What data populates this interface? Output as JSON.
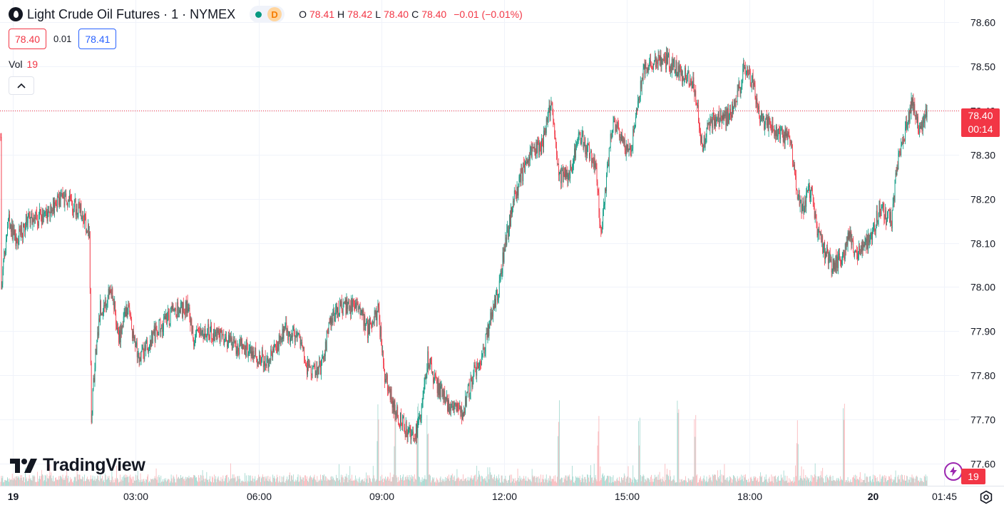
{
  "legend": {
    "symbol_icon": "oil-drop-icon",
    "title": "Light Crude Oil Futures · 1 · NYMEX",
    "status_icon": "market-open-dot-icon",
    "delay_badge": "D",
    "ohlc": {
      "o_label": "O",
      "o_value": "78.41",
      "h_label": "H",
      "h_value": "78.42",
      "l_label": "L",
      "l_value": "78.40",
      "c_label": "C",
      "c_value": "78.40",
      "change": "−0.01 (−0.01%)"
    }
  },
  "trade": {
    "bid": "78.40",
    "spread": "0.01",
    "ask": "78.41"
  },
  "volume_legend": {
    "label": "Vol",
    "value": "19"
  },
  "collapse_icon": "chevron-up-icon",
  "brand": {
    "logo_icon": "tradingview-logo-icon",
    "name": "TradingView"
  },
  "price_label": {
    "price": "78.40",
    "countdown": "00:14"
  },
  "volume_label": "19",
  "colors": {
    "up": "#089981",
    "down": "#f23645",
    "up_volume": "#9ed6cd",
    "down_volume": "#f9b2b6",
    "grid": "#f0f3fa",
    "text": "#131722",
    "accent": "#2962ff"
  },
  "chart_data": {
    "type": "candlestick",
    "interval": "1 minute",
    "y_ticks": [
      "78.60",
      "78.50",
      "78.40",
      "78.30",
      "78.20",
      "78.10",
      "78.00",
      "77.90",
      "77.80",
      "77.70",
      "77.60"
    ],
    "x_ticks": [
      {
        "label": "19",
        "bold": true,
        "minute": 0
      },
      {
        "label": "03:00",
        "bold": false,
        "minute": 180
      },
      {
        "label": "06:00",
        "bold": false,
        "minute": 360
      },
      {
        "label": "09:00",
        "bold": false,
        "minute": 540
      },
      {
        "label": "12:00",
        "bold": false,
        "minute": 720
      },
      {
        "label": "15:00",
        "bold": false,
        "minute": 900
      },
      {
        "label": "18:00",
        "bold": false,
        "minute": 1080
      },
      {
        "label": "20",
        "bold": true,
        "minute": 1260
      },
      {
        "label": "01:45",
        "bold": false,
        "minute": 1365
      }
    ],
    "ylim": [
      77.55,
      78.65
    ],
    "x_range_minutes": [
      -19,
      1387
    ],
    "last_price": 78.4,
    "price_path": [
      [
        -18,
        78.34
      ],
      [
        -17,
        77.99
      ],
      [
        -14,
        78.05
      ],
      [
        -6,
        78.15
      ],
      [
        5,
        78.1
      ],
      [
        20,
        78.15
      ],
      [
        50,
        78.16
      ],
      [
        65,
        78.2
      ],
      [
        85,
        78.19
      ],
      [
        100,
        78.17
      ],
      [
        112,
        78.12
      ],
      [
        115,
        77.7
      ],
      [
        121,
        77.85
      ],
      [
        128,
        77.95
      ],
      [
        135,
        77.96
      ],
      [
        145,
        78.0
      ],
      [
        155,
        77.88
      ],
      [
        168,
        77.95
      ],
      [
        185,
        77.83
      ],
      [
        200,
        77.88
      ],
      [
        220,
        77.92
      ],
      [
        240,
        77.95
      ],
      [
        258,
        77.95
      ],
      [
        265,
        77.88
      ],
      [
        290,
        77.9
      ],
      [
        320,
        77.87
      ],
      [
        345,
        77.86
      ],
      [
        372,
        77.83
      ],
      [
        400,
        77.9
      ],
      [
        420,
        77.88
      ],
      [
        435,
        77.8
      ],
      [
        452,
        77.82
      ],
      [
        465,
        77.92
      ],
      [
        478,
        77.95
      ],
      [
        492,
        77.96
      ],
      [
        508,
        77.95
      ],
      [
        520,
        77.9
      ],
      [
        535,
        77.95
      ],
      [
        545,
        77.8
      ],
      [
        560,
        77.72
      ],
      [
        575,
        77.68
      ],
      [
        590,
        77.67
      ],
      [
        598,
        77.7
      ],
      [
        608,
        77.84
      ],
      [
        620,
        77.78
      ],
      [
        632,
        77.75
      ],
      [
        645,
        77.72
      ],
      [
        660,
        77.72
      ],
      [
        675,
        77.8
      ],
      [
        690,
        77.85
      ],
      [
        700,
        77.93
      ],
      [
        710,
        77.98
      ],
      [
        722,
        78.1
      ],
      [
        735,
        78.2
      ],
      [
        745,
        78.25
      ],
      [
        758,
        78.3
      ],
      [
        775,
        78.32
      ],
      [
        790,
        78.42
      ],
      [
        800,
        78.25
      ],
      [
        815,
        78.25
      ],
      [
        830,
        78.35
      ],
      [
        845,
        78.3
      ],
      [
        855,
        78.28
      ],
      [
        862,
        78.12
      ],
      [
        870,
        78.25
      ],
      [
        880,
        78.38
      ],
      [
        895,
        78.32
      ],
      [
        905,
        78.3
      ],
      [
        915,
        78.4
      ],
      [
        925,
        78.5
      ],
      [
        935,
        78.5
      ],
      [
        950,
        78.52
      ],
      [
        970,
        78.5
      ],
      [
        985,
        78.48
      ],
      [
        1000,
        78.45
      ],
      [
        1010,
        78.32
      ],
      [
        1025,
        78.38
      ],
      [
        1045,
        78.38
      ],
      [
        1060,
        78.42
      ],
      [
        1073,
        78.5
      ],
      [
        1085,
        78.46
      ],
      [
        1095,
        78.38
      ],
      [
        1110,
        78.37
      ],
      [
        1125,
        78.35
      ],
      [
        1140,
        78.33
      ],
      [
        1148,
        78.22
      ],
      [
        1158,
        78.18
      ],
      [
        1170,
        78.22
      ],
      [
        1180,
        78.12
      ],
      [
        1190,
        78.08
      ],
      [
        1200,
        78.05
      ],
      [
        1215,
        78.06
      ],
      [
        1225,
        78.12
      ],
      [
        1238,
        78.07
      ],
      [
        1250,
        78.1
      ],
      [
        1260,
        78.12
      ],
      [
        1270,
        78.18
      ],
      [
        1280,
        78.16
      ],
      [
        1288,
        78.15
      ],
      [
        1298,
        78.3
      ],
      [
        1308,
        78.35
      ],
      [
        1318,
        78.42
      ],
      [
        1330,
        78.35
      ],
      [
        1336,
        78.38
      ],
      [
        1340,
        78.4
      ]
    ],
    "volume": {
      "typical_max": 19,
      "spikes_at_minutes": [
        535,
        560,
        593,
        608,
        800,
        858,
        918,
        975,
        1000,
        1150,
        1218
      ]
    }
  }
}
